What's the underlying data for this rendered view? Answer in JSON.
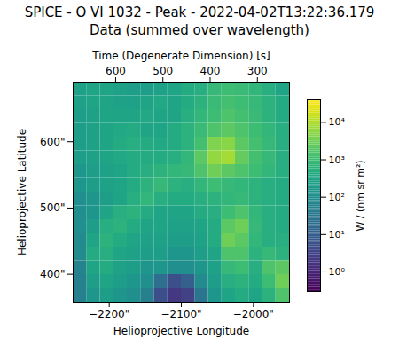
{
  "chart_data": {
    "type": "heatmap",
    "title": "SPICE - O VI 1032 - Peak - 2022-04-02T13:22:36.179",
    "subtitle": "Data (summed over wavelength)",
    "x_label": "Helioprojective Longitude",
    "y_label": "Helioprojective Latitude",
    "x2_label": "Time (Degenerate Dimension) [s]",
    "xlim": [
      -2250,
      -1950
    ],
    "ylim": [
      358,
      690
    ],
    "x2lim": [
      690,
      232
    ],
    "xticks": [
      {
        "value": -2200,
        "label": "−2200\""
      },
      {
        "value": -2100,
        "label": "−2100\""
      },
      {
        "value": -2000,
        "label": "−2000\""
      }
    ],
    "yticks": [
      {
        "value": 400,
        "label": "400\""
      },
      {
        "value": 500,
        "label": "500\""
      },
      {
        "value": 600,
        "label": "600\""
      }
    ],
    "x2ticks": [
      600,
      500,
      400,
      300
    ],
    "x_edges": [
      -2250,
      -2231.25,
      -2212.5,
      -2193.75,
      -2175,
      -2156.25,
      -2137.5,
      -2118.75,
      -2100,
      -2081.25,
      -2062.5,
      -2043.75,
      -2025,
      -2006.25,
      -1987.5,
      -1968.75,
      -1950
    ],
    "y_edges": [
      690,
      669.25,
      648.5,
      627.75,
      607,
      586.25,
      565.5,
      544.75,
      524,
      503.25,
      482.5,
      461.75,
      441,
      420.25,
      399.5,
      378.75,
      358
    ],
    "cells": [
      [
        250,
        300,
        300,
        250,
        200,
        200,
        250,
        300,
        400,
        500,
        800,
        1000,
        900,
        700,
        500,
        300
      ],
      [
        250,
        300,
        300,
        250,
        250,
        300,
        350,
        300,
        400,
        600,
        900,
        1200,
        1000,
        800,
        600,
        400
      ],
      [
        200,
        250,
        300,
        300,
        300,
        350,
        300,
        300,
        500,
        700,
        1000,
        1500,
        1200,
        900,
        600,
        400
      ],
      [
        200,
        250,
        300,
        350,
        400,
        300,
        300,
        400,
        600,
        900,
        1500,
        2000,
        1500,
        1000,
        700,
        500
      ],
      [
        200,
        250,
        300,
        400,
        500,
        400,
        350,
        400,
        600,
        1200,
        4000,
        5000,
        2000,
        1200,
        800,
        500
      ],
      [
        200,
        250,
        300,
        350,
        400,
        400,
        400,
        500,
        700,
        2000,
        6000,
        8000,
        2500,
        1200,
        800,
        500
      ],
      [
        150,
        200,
        250,
        300,
        400,
        500,
        600,
        700,
        800,
        1500,
        3000,
        2000,
        1500,
        1000,
        700,
        500
      ],
      [
        150,
        200,
        250,
        300,
        400,
        600,
        800,
        600,
        500,
        700,
        1000,
        800,
        700,
        600,
        500,
        400
      ],
      [
        100,
        150,
        200,
        300,
        500,
        700,
        500,
        400,
        400,
        500,
        600,
        700,
        800,
        600,
        500,
        400
      ],
      [
        100,
        150,
        300,
        500,
        600,
        400,
        300,
        300,
        300,
        400,
        500,
        1000,
        1500,
        700,
        500,
        400
      ],
      [
        100,
        200,
        500,
        600,
        400,
        300,
        300,
        250,
        250,
        300,
        400,
        2000,
        3000,
        800,
        500,
        400
      ],
      [
        80,
        300,
        600,
        400,
        300,
        250,
        250,
        200,
        200,
        250,
        400,
        3000,
        2000,
        700,
        500,
        500
      ],
      [
        80,
        400,
        500,
        300,
        250,
        200,
        200,
        150,
        150,
        200,
        300,
        1500,
        1500,
        600,
        800,
        600
      ],
      [
        60,
        300,
        400,
        250,
        200,
        150,
        150,
        100,
        100,
        150,
        250,
        800,
        1000,
        500,
        1500,
        2000
      ],
      [
        50,
        200,
        300,
        200,
        150,
        100,
        20,
        5,
        10,
        80,
        200,
        500,
        600,
        400,
        1000,
        3000
      ],
      [
        50,
        150,
        200,
        150,
        100,
        50,
        5,
        2,
        3,
        30,
        150,
        300,
        400,
        300,
        600,
        1500
      ]
    ],
    "colorbar": {
      "label": "W / (nm sr m²)",
      "color": "viridis",
      "range": [
        0.3,
        40000
      ],
      "ticks": [
        {
          "value": 1,
          "label": "10⁰"
        },
        {
          "value": 10,
          "label": "10¹"
        },
        {
          "value": 100,
          "label": "10²"
        },
        {
          "value": 1000,
          "label": "10³"
        },
        {
          "value": 10000,
          "label": "10⁴"
        }
      ]
    }
  }
}
